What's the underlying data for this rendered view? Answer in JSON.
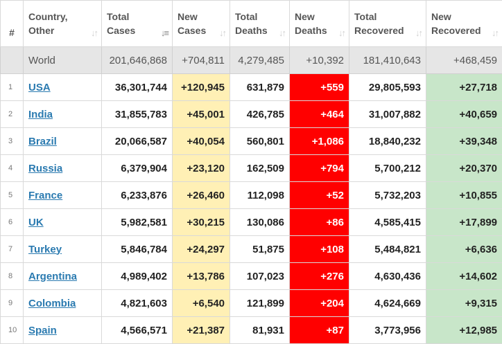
{
  "headers": {
    "num": "#",
    "country": [
      "Country,",
      "Other"
    ],
    "total_cases": [
      "Total",
      "Cases"
    ],
    "new_cases": [
      "New",
      "Cases"
    ],
    "total_deaths": [
      "Total",
      "Deaths"
    ],
    "new_deaths": [
      "New",
      "Deaths"
    ],
    "total_recovered": [
      "Total",
      "Recovered"
    ],
    "new_recovered": [
      "New",
      "Recovered"
    ]
  },
  "icons": {
    "sort": "sort-arrows-icon",
    "sort_active": "sort-descending-icon"
  },
  "colors": {
    "new_cases_bg": "#fff0b5",
    "new_deaths_bg": "#ff0000",
    "new_recovered_bg": "#c8e6c9",
    "world_bg": "#e6e6e6",
    "link": "#2a7ab0"
  },
  "world": {
    "country": "World",
    "total_cases": "201,646,868",
    "new_cases": "+704,811",
    "total_deaths": "4,279,485",
    "new_deaths": "+10,392",
    "total_recovered": "181,410,643",
    "new_recovered": "+468,459"
  },
  "rows": [
    {
      "num": "1",
      "country": "USA",
      "total_cases": "36,301,744",
      "new_cases": "+120,945",
      "total_deaths": "631,879",
      "new_deaths": "+559",
      "total_recovered": "29,805,593",
      "new_recovered": "+27,718"
    },
    {
      "num": "2",
      "country": "India",
      "total_cases": "31,855,783",
      "new_cases": "+45,001",
      "total_deaths": "426,785",
      "new_deaths": "+464",
      "total_recovered": "31,007,882",
      "new_recovered": "+40,659"
    },
    {
      "num": "3",
      "country": "Brazil",
      "total_cases": "20,066,587",
      "new_cases": "+40,054",
      "total_deaths": "560,801",
      "new_deaths": "+1,086",
      "total_recovered": "18,840,232",
      "new_recovered": "+39,348"
    },
    {
      "num": "4",
      "country": "Russia",
      "total_cases": "6,379,904",
      "new_cases": "+23,120",
      "total_deaths": "162,509",
      "new_deaths": "+794",
      "total_recovered": "5,700,212",
      "new_recovered": "+20,370"
    },
    {
      "num": "5",
      "country": "France",
      "total_cases": "6,233,876",
      "new_cases": "+26,460",
      "total_deaths": "112,098",
      "new_deaths": "+52",
      "total_recovered": "5,732,203",
      "new_recovered": "+10,855"
    },
    {
      "num": "6",
      "country": "UK",
      "total_cases": "5,982,581",
      "new_cases": "+30,215",
      "total_deaths": "130,086",
      "new_deaths": "+86",
      "total_recovered": "4,585,415",
      "new_recovered": "+17,899"
    },
    {
      "num": "7",
      "country": "Turkey",
      "total_cases": "5,846,784",
      "new_cases": "+24,297",
      "total_deaths": "51,875",
      "new_deaths": "+108",
      "total_recovered": "5,484,821",
      "new_recovered": "+6,636"
    },
    {
      "num": "8",
      "country": "Argentina",
      "total_cases": "4,989,402",
      "new_cases": "+13,786",
      "total_deaths": "107,023",
      "new_deaths": "+276",
      "total_recovered": "4,630,436",
      "new_recovered": "+14,602"
    },
    {
      "num": "9",
      "country": "Colombia",
      "total_cases": "4,821,603",
      "new_cases": "+6,540",
      "total_deaths": "121,899",
      "new_deaths": "+204",
      "total_recovered": "4,624,669",
      "new_recovered": "+9,315"
    },
    {
      "num": "10",
      "country": "Spain",
      "total_cases": "4,566,571",
      "new_cases": "+21,387",
      "total_deaths": "81,931",
      "new_deaths": "+87",
      "total_recovered": "3,773,956",
      "new_recovered": "+12,985"
    }
  ]
}
